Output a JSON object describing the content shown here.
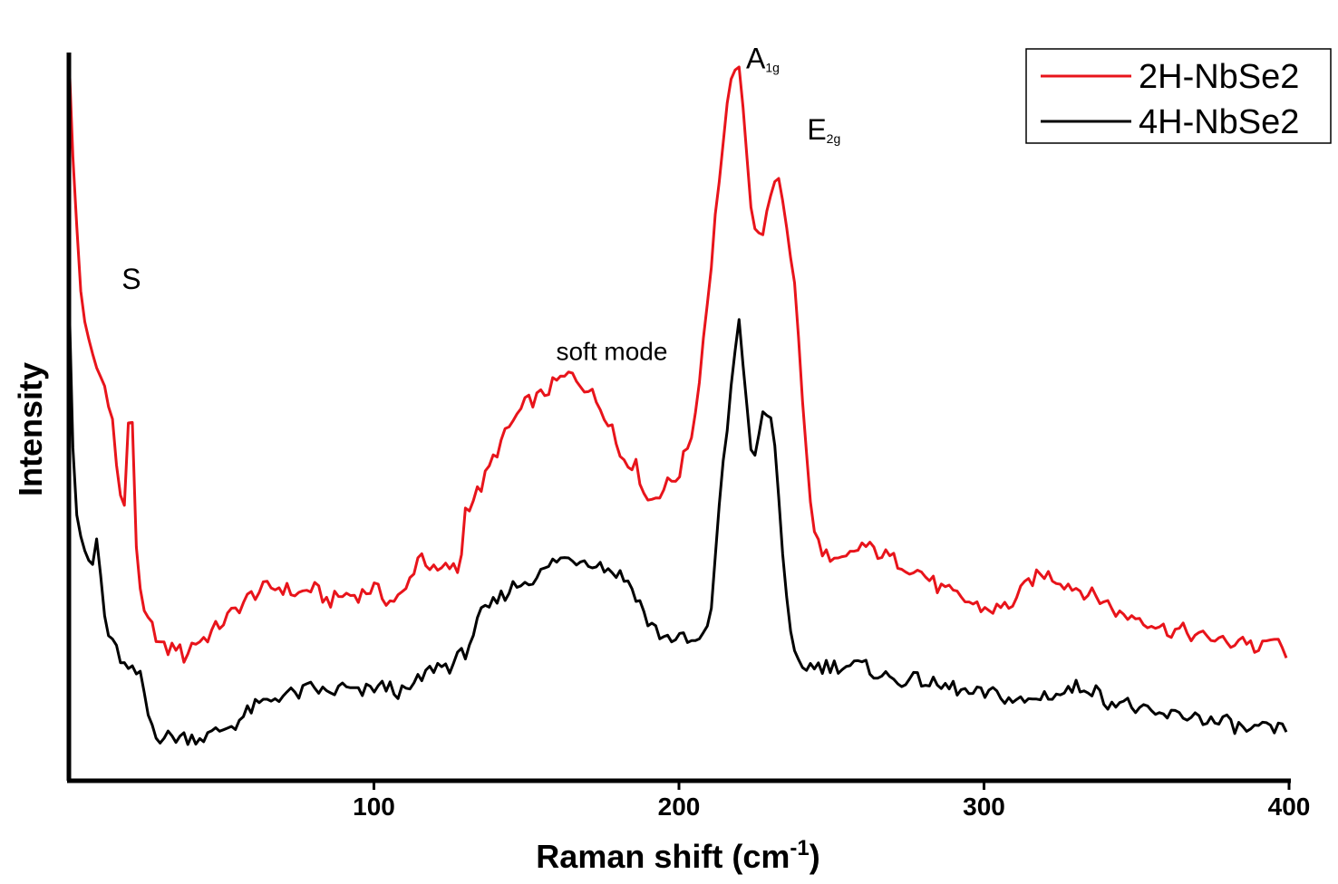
{
  "chart_data": {
    "type": "line",
    "xlabel": "Raman shift (cm",
    "xlabel_sup": "-1",
    "xlabel_end": ")",
    "ylabel": "Intensity",
    "xlim": [
      0,
      400
    ],
    "ylim": [
      0,
      1
    ],
    "x_ticks": [
      100,
      200,
      300,
      400
    ],
    "y_ticks_shown": false,
    "grid": false,
    "legend_position": "top-right",
    "annotations": [
      {
        "text": "S",
        "sub": "",
        "x": 20.5,
        "y": 0.67
      },
      {
        "text": "soft mode",
        "sub": "",
        "x": 178,
        "y": 0.57
      },
      {
        "text": "A",
        "sub": "1g",
        "x": 222,
        "y": 0.98
      },
      {
        "text": "E",
        "sub": "2g",
        "x": 242,
        "y": 0.88
      }
    ],
    "series": [
      {
        "name": "2H-NbSe2",
        "color": "#e8141b",
        "x": [
          0,
          1,
          2,
          3,
          4,
          6,
          8,
          10,
          12,
          14,
          16,
          18,
          19,
          20,
          21,
          22,
          23,
          24,
          26,
          28,
          30,
          32,
          35,
          38,
          40,
          45,
          50,
          55,
          60,
          65,
          70,
          75,
          80,
          85,
          90,
          95,
          100,
          105,
          110,
          115,
          120,
          125,
          128,
          130,
          135,
          140,
          145,
          150,
          155,
          160,
          165,
          170,
          175,
          178,
          180,
          183,
          186,
          190,
          195,
          200,
          205,
          210,
          213,
          216,
          219,
          222,
          224,
          226,
          228,
          230,
          232,
          234,
          236,
          238,
          240,
          242,
          244,
          246,
          248,
          250,
          255,
          260,
          265,
          270,
          275,
          280,
          285,
          290,
          295,
          300,
          305,
          310,
          315,
          320,
          325,
          330,
          335,
          340,
          345,
          350,
          355,
          360,
          365,
          370,
          375,
          380,
          385,
          390,
          395,
          398,
          400
        ],
        "values": [
          1.0,
          0.88,
          0.8,
          0.73,
          0.66,
          0.6,
          0.57,
          0.55,
          0.53,
          0.5,
          0.4,
          0.36,
          0.35,
          0.62,
          0.45,
          0.32,
          0.25,
          0.22,
          0.2,
          0.19,
          0.17,
          0.16,
          0.17,
          0.15,
          0.17,
          0.18,
          0.2,
          0.22,
          0.24,
          0.25,
          0.25,
          0.24,
          0.25,
          0.23,
          0.24,
          0.24,
          0.25,
          0.23,
          0.24,
          0.3,
          0.27,
          0.28,
          0.27,
          0.36,
          0.39,
          0.44,
          0.48,
          0.51,
          0.52,
          0.54,
          0.55,
          0.53,
          0.5,
          0.48,
          0.44,
          0.43,
          0.42,
          0.37,
          0.39,
          0.41,
          0.48,
          0.68,
          0.82,
          0.93,
          1.0,
          0.88,
          0.77,
          0.74,
          0.76,
          0.79,
          0.84,
          0.8,
          0.74,
          0.67,
          0.55,
          0.42,
          0.33,
          0.31,
          0.3,
          0.28,
          0.29,
          0.31,
          0.3,
          0.29,
          0.28,
          0.27,
          0.25,
          0.24,
          0.23,
          0.22,
          0.22,
          0.23,
          0.26,
          0.27,
          0.26,
          0.25,
          0.24,
          0.23,
          0.21,
          0.21,
          0.2,
          0.19,
          0.19,
          0.18,
          0.18,
          0.17,
          0.18,
          0.16,
          0.18,
          0.16,
          0.16
        ]
      },
      {
        "name": "4H-NbSe2",
        "color": "#000000",
        "x": [
          0,
          1,
          2,
          3,
          4,
          6,
          8,
          9,
          10,
          11,
          12,
          14,
          16,
          18,
          20,
          22,
          24,
          26,
          28,
          30,
          35,
          40,
          45,
          50,
          55,
          60,
          65,
          70,
          75,
          80,
          85,
          90,
          95,
          100,
          105,
          110,
          115,
          120,
          125,
          130,
          135,
          140,
          145,
          150,
          155,
          160,
          165,
          170,
          175,
          180,
          183,
          186,
          190,
          195,
          200,
          205,
          210,
          213,
          216,
          218,
          220,
          222,
          224,
          226,
          228,
          230,
          232,
          234,
          236,
          238,
          240,
          245,
          250,
          255,
          260,
          265,
          270,
          275,
          280,
          285,
          290,
          295,
          300,
          305,
          310,
          315,
          320,
          325,
          330,
          335,
          340,
          345,
          350,
          355,
          360,
          365,
          370,
          375,
          380,
          385,
          390,
          395,
          398,
          400
        ],
        "values": [
          0.67,
          0.48,
          0.37,
          0.34,
          0.32,
          0.29,
          0.28,
          0.32,
          0.29,
          0.23,
          0.2,
          0.17,
          0.16,
          0.14,
          0.13,
          0.13,
          0.12,
          0.07,
          0.05,
          0.04,
          0.04,
          0.04,
          0.04,
          0.05,
          0.06,
          0.08,
          0.09,
          0.1,
          0.1,
          0.11,
          0.1,
          0.11,
          0.1,
          0.11,
          0.11,
          0.1,
          0.12,
          0.14,
          0.14,
          0.16,
          0.21,
          0.23,
          0.25,
          0.26,
          0.27,
          0.29,
          0.29,
          0.29,
          0.28,
          0.27,
          0.26,
          0.24,
          0.2,
          0.18,
          0.18,
          0.17,
          0.19,
          0.36,
          0.48,
          0.58,
          0.63,
          0.51,
          0.42,
          0.46,
          0.5,
          0.49,
          0.43,
          0.3,
          0.19,
          0.15,
          0.14,
          0.14,
          0.14,
          0.14,
          0.14,
          0.13,
          0.12,
          0.12,
          0.12,
          0.11,
          0.11,
          0.1,
          0.1,
          0.1,
          0.09,
          0.09,
          0.1,
          0.1,
          0.11,
          0.11,
          0.09,
          0.09,
          0.08,
          0.07,
          0.07,
          0.07,
          0.07,
          0.06,
          0.06,
          0.05,
          0.05,
          0.05,
          0.05,
          0.05
        ]
      }
    ]
  }
}
